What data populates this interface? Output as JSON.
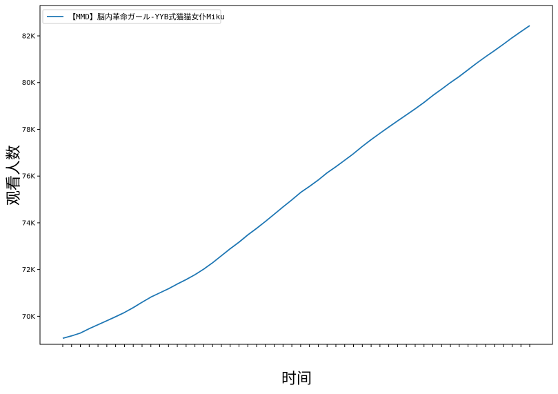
{
  "chart_data": {
    "type": "line",
    "title": "",
    "xlabel": "时间",
    "ylabel": "观看人数",
    "ylim": [
      68800,
      83300
    ],
    "yticks": [
      70000,
      72000,
      74000,
      76000,
      78000,
      80000,
      82000
    ],
    "ytick_labels": [
      "70K",
      "72K",
      "74K",
      "76K",
      "78K",
      "80K",
      "82K"
    ],
    "grid": false,
    "legend_position": "upper left",
    "series": [
      {
        "name": "【MMD】脳内革命ガール-YYB式猫猫女仆Miku",
        "color": "#1f77b4",
        "values": [
          69060,
          69160,
          69280,
          69470,
          69640,
          69810,
          69980,
          70160,
          70370,
          70600,
          70820,
          71000,
          71180,
          71380,
          71570,
          71780,
          72020,
          72290,
          72590,
          72890,
          73170,
          73480,
          73760,
          74060,
          74370,
          74680,
          74980,
          75300,
          75560,
          75830,
          76140,
          76400,
          76680,
          76960,
          77270,
          77560,
          77830,
          78100,
          78360,
          78620,
          78880,
          79150,
          79450,
          79720,
          80000,
          80260,
          80550,
          80840,
          81110,
          81370,
          81640,
          81920,
          82180,
          82440
        ]
      }
    ]
  }
}
